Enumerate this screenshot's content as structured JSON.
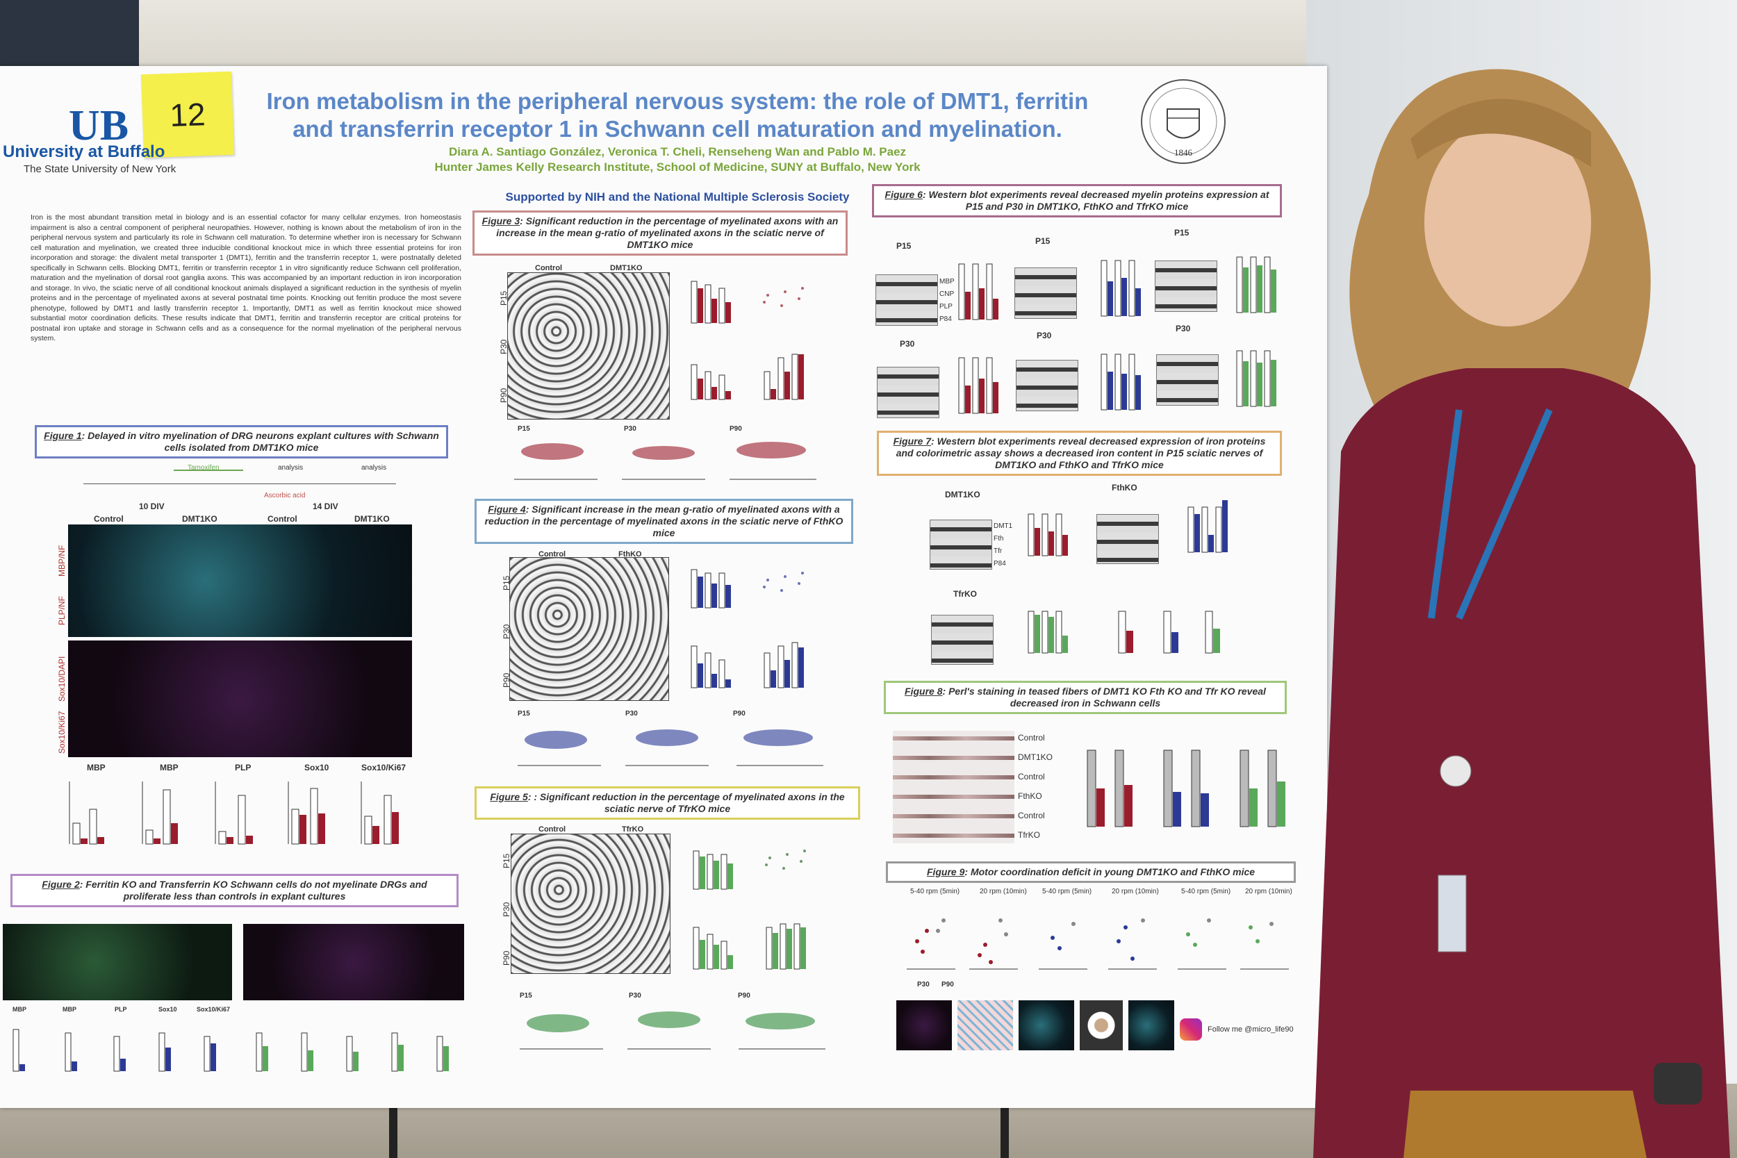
{
  "sticky_note": "12",
  "institution": {
    "name": "University at Buffalo",
    "subtitle": "The State University of New York"
  },
  "seal_year": "1846",
  "poster": {
    "title_line1": "Iron metabolism in the peripheral nervous system: the role of DMT1, ferritin",
    "title_line2": "and transferrin receptor 1 in Schwann cell maturation and myelination.",
    "authors": "Diara A. Santiago González, Veronica T. Cheli, Renseheng Wan and Pablo M. Paez",
    "affiliation": "Hunter James Kelly Research Institute, School of Medicine, SUNY at Buffalo, New York",
    "support": "Supported by NIH and the National Multiple Sclerosis Society",
    "abstract": "Iron is the most abundant transition metal in biology and is an essential cofactor for many cellular enzymes. Iron homeostasis impairment is also a central component of peripheral neuropathies. However, nothing is known about the metabolism of iron in the peripheral nervous system and particularly its role in Schwann cell maturation. To determine whether iron is necessary for Schwann cell maturation and myelination, we created three inducible conditional knockout mice in which three essential proteins for iron incorporation and storage: the divalent metal transporter 1 (DMT1), ferritin and the transferrin receptor 1, were postnatally deleted specifically in Schwann cells. Blocking DMT1, ferritin or transferrin receptor 1 in vitro significantly reduce Schwann cell proliferation, maturation and the myelination of dorsal root ganglia axons. This was accompanied by an important reduction in iron incorporation and storage. In vivo, the sciatic nerve of all conditional knockout animals displayed a significant reduction in the synthesis of myelin proteins and in the percentage of myelinated axons at several postnatal time points. Knocking out ferritin produce the most severe phenotype, followed by DMT1 and lastly transferrin receptor 1. Importantly, DMT1 as well as ferritin knockout mice showed substantial motor coordination deficits. These results indicate that DMT1, ferritin and transferrin receptor are critical proteins for postnatal iron uptake and storage in Schwann cells and as a consequence for the normal myelination of the peripheral nervous system."
  },
  "figures": {
    "fig1": {
      "num": "Figure 1",
      "caption": ": Delayed in vitro myelination of DRG neurons explant cultures with Schwann cells isolated from DMT1KO mice",
      "color": "#6c7fc2",
      "col_headers": [
        "Control",
        "DMT1KO",
        "Control",
        "DMT1KO"
      ],
      "div_labels": [
        "10 DIV",
        "14 DIV"
      ],
      "timeline": [
        "Tamoxifen",
        "analysis",
        "analysis",
        "Ascorbic acid"
      ],
      "row_labels": [
        "MBP/NF",
        "PLP/NF",
        "Sox10/DAPI",
        "Sox10/Ki67"
      ],
      "chart_labels": [
        "MBP",
        "MBP",
        "PLP",
        "Sox10",
        "Sox10/Ki67"
      ]
    },
    "fig2": {
      "num": "Figure 2",
      "caption": ": Ferritin KO and Transferrin KO Schwann cells do not myelinate DRGs and proliferate less than controls in explant cultures",
      "color": "#b48bc6",
      "chart_labels": [
        "MBP",
        "MBP",
        "PLP",
        "Sox10",
        "Sox10/Ki67"
      ]
    },
    "fig3": {
      "num": "Figure 3",
      "caption": ": Significant reduction in the percentage of myelinated axons with an increase in the mean g-ratio of myelinated axons in the sciatic nerve of DMT1KO mice",
      "color": "#c98b8b",
      "col_headers": [
        "Control",
        "DMT1KO"
      ],
      "row_labels": [
        "P15",
        "P30",
        "P90"
      ],
      "scatter_labels": [
        "P15",
        "P30",
        "P90"
      ]
    },
    "fig4": {
      "num": "Figure 4",
      "caption": ": Significant increase in the mean g-ratio of myelinated axons with a reduction in the percentage of myelinated axons in the sciatic nerve of FthKO mice",
      "color": "#7fa7c9",
      "col_headers": [
        "Control",
        "FthKO"
      ],
      "row_labels": [
        "P15",
        "P30",
        "P90"
      ],
      "scatter_labels": [
        "P15",
        "P30",
        "P90"
      ]
    },
    "fig5": {
      "num": "Figure 5",
      "caption": ": : Significant reduction in the percentage of myelinated axons in the sciatic nerve of TfrKO mice",
      "color": "#d9cf5a",
      "col_headers": [
        "Control",
        "TfrKO"
      ],
      "row_labels": [
        "P15",
        "P30",
        "P90"
      ],
      "scatter_labels": [
        "P15",
        "P30",
        "P90"
      ]
    },
    "fig6": {
      "num": "Figure 6",
      "caption": ": Western blot experiments reveal decreased myelin proteins expression at P15 and P30 in DMT1KO, FthKO and TfrKO mice",
      "color": "#a76b8e",
      "ages": [
        "P15",
        "P15",
        "P15",
        "P30",
        "P30",
        "P30"
      ],
      "bands": [
        "MBP",
        "CNP",
        "PLP",
        "P84"
      ]
    },
    "fig7": {
      "num": "Figure 7",
      "caption": ": Western blot experiments reveal decreased expression of iron proteins and colorimetric assay shows a decreased iron content in P15 sciatic nerves of DMT1KO and FthKO and TfrKO mice",
      "color": "#e0b070",
      "groups": [
        "DMT1KO",
        "FthKO",
        "TfrKO"
      ],
      "bands": [
        "DMT1",
        "Fth",
        "Tfr",
        "P84"
      ]
    },
    "fig8": {
      "num": "Figure 8",
      "caption": ": Perl's staining in teased fibers of DMT1 KO Fth KO and Tfr KO reveal decreased iron in Schwann cells",
      "color": "#9fc77a",
      "rows": [
        "Control",
        "DMT1KO",
        "Control",
        "FthKO",
        "Control",
        "TfrKO"
      ]
    },
    "fig9": {
      "num": "Figure 9",
      "caption": ": Motor coordination deficit in young DMT1KO and FthKO mice",
      "color": "#999999",
      "conditions": [
        "5-40 rpm (5min)",
        "20 rpm (10min)",
        "5-40 rpm (5min)",
        "20 rpm (10min)",
        "5-40 rpm (5min)",
        "20 rpm (10min)"
      ],
      "ages": [
        "P30",
        "P90"
      ]
    },
    "instagram": "Follow me @micro_life90"
  }
}
